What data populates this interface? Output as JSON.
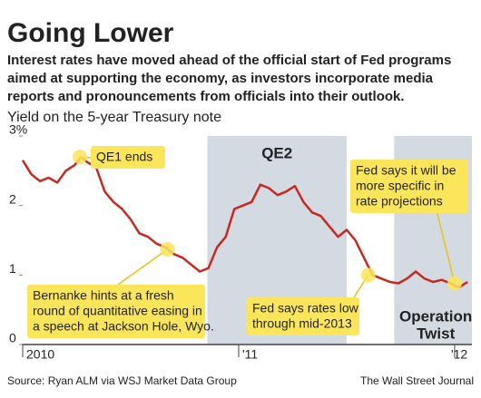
{
  "chart_data": {
    "type": "line",
    "title": "Going Lower",
    "subtitle": [
      "Interest rates have moved ahead of the official start of Fed programs",
      "aimed at supporting the economy, as investors incorporate media",
      "reports and pronouncements from officials into their outlook."
    ],
    "y_label": "Yield on the 5-year Treasury note",
    "source": "Source: Ryan ALM via WSJ Market Data Group",
    "credit": "The Wall Street Journal",
    "x": [
      2010.0,
      2010.04,
      2010.08,
      2010.12,
      2010.16,
      2010.2,
      2010.24,
      2010.27,
      2010.3,
      2010.34,
      2010.38,
      2010.42,
      2010.46,
      2010.5,
      2010.54,
      2010.58,
      2010.62,
      2010.66,
      2010.7,
      2010.74,
      2010.78,
      2010.82,
      2010.86,
      2010.9,
      2010.94,
      2010.98,
      2011.02,
      2011.06,
      2011.1,
      2011.14,
      2011.18,
      2011.22,
      2011.26,
      2011.3,
      2011.34,
      2011.38,
      2011.42,
      2011.46,
      2011.5,
      2011.54,
      2011.58,
      2011.62,
      2011.66,
      2011.7,
      2011.74,
      2011.78,
      2011.82,
      2011.86,
      2011.9,
      2011.94,
      2011.98,
      2012.02,
      2012.06
    ],
    "series": [
      {
        "name": "5-year Treasury yield",
        "color": "#c8281f",
        "values": [
          2.65,
          2.45,
          2.35,
          2.4,
          2.33,
          2.5,
          2.58,
          2.7,
          2.62,
          2.55,
          2.2,
          2.05,
          1.95,
          1.8,
          1.6,
          1.55,
          1.45,
          1.4,
          1.3,
          1.25,
          1.15,
          1.05,
          1.1,
          1.4,
          1.55,
          1.95,
          2.0,
          2.05,
          2.3,
          2.25,
          2.15,
          2.2,
          2.28,
          2.05,
          1.9,
          1.85,
          1.7,
          1.55,
          1.65,
          1.5,
          1.25,
          1.0,
          0.95,
          0.9,
          0.88,
          0.95,
          1.05,
          0.95,
          0.9,
          0.93,
          0.88,
          0.82,
          0.9
        ]
      }
    ],
    "xlim": [
      2010,
      2012.08
    ],
    "xticks": [
      2010,
      {
        "value": 2011,
        "label": "'11"
      },
      {
        "value": 2012,
        "label": "'12"
      }
    ],
    "ylim": [
      0,
      3
    ],
    "yticks": [
      0,
      1,
      2,
      {
        "value": 3,
        "label": "3%"
      }
    ],
    "grid": false,
    "shaded_periods": [
      {
        "label": [
          "QE2"
        ],
        "start": 2010.855,
        "end": 2011.5
      },
      {
        "label": [
          "Operation",
          "Twist"
        ],
        "start": 2011.72,
        "end": 2012.08
      }
    ],
    "annotations": [
      {
        "lines": [
          "QE1 ends"
        ],
        "x": 2010.265,
        "y": 2.7
      },
      {
        "lines": [
          "Bernanke hints at a fresh",
          "round of quantitative easing in",
          "a speech at Jackson Hole, Wyo."
        ],
        "x": 2010.67,
        "y": 1.37
      },
      {
        "lines": [
          "Fed says rates low",
          "through mid-2013"
        ],
        "x": 2011.6,
        "y": 1.0
      },
      {
        "lines": [
          "Fed says it will be",
          "more specific in",
          "rate projections"
        ],
        "x": 2012.0,
        "y": 0.88
      }
    ]
  }
}
